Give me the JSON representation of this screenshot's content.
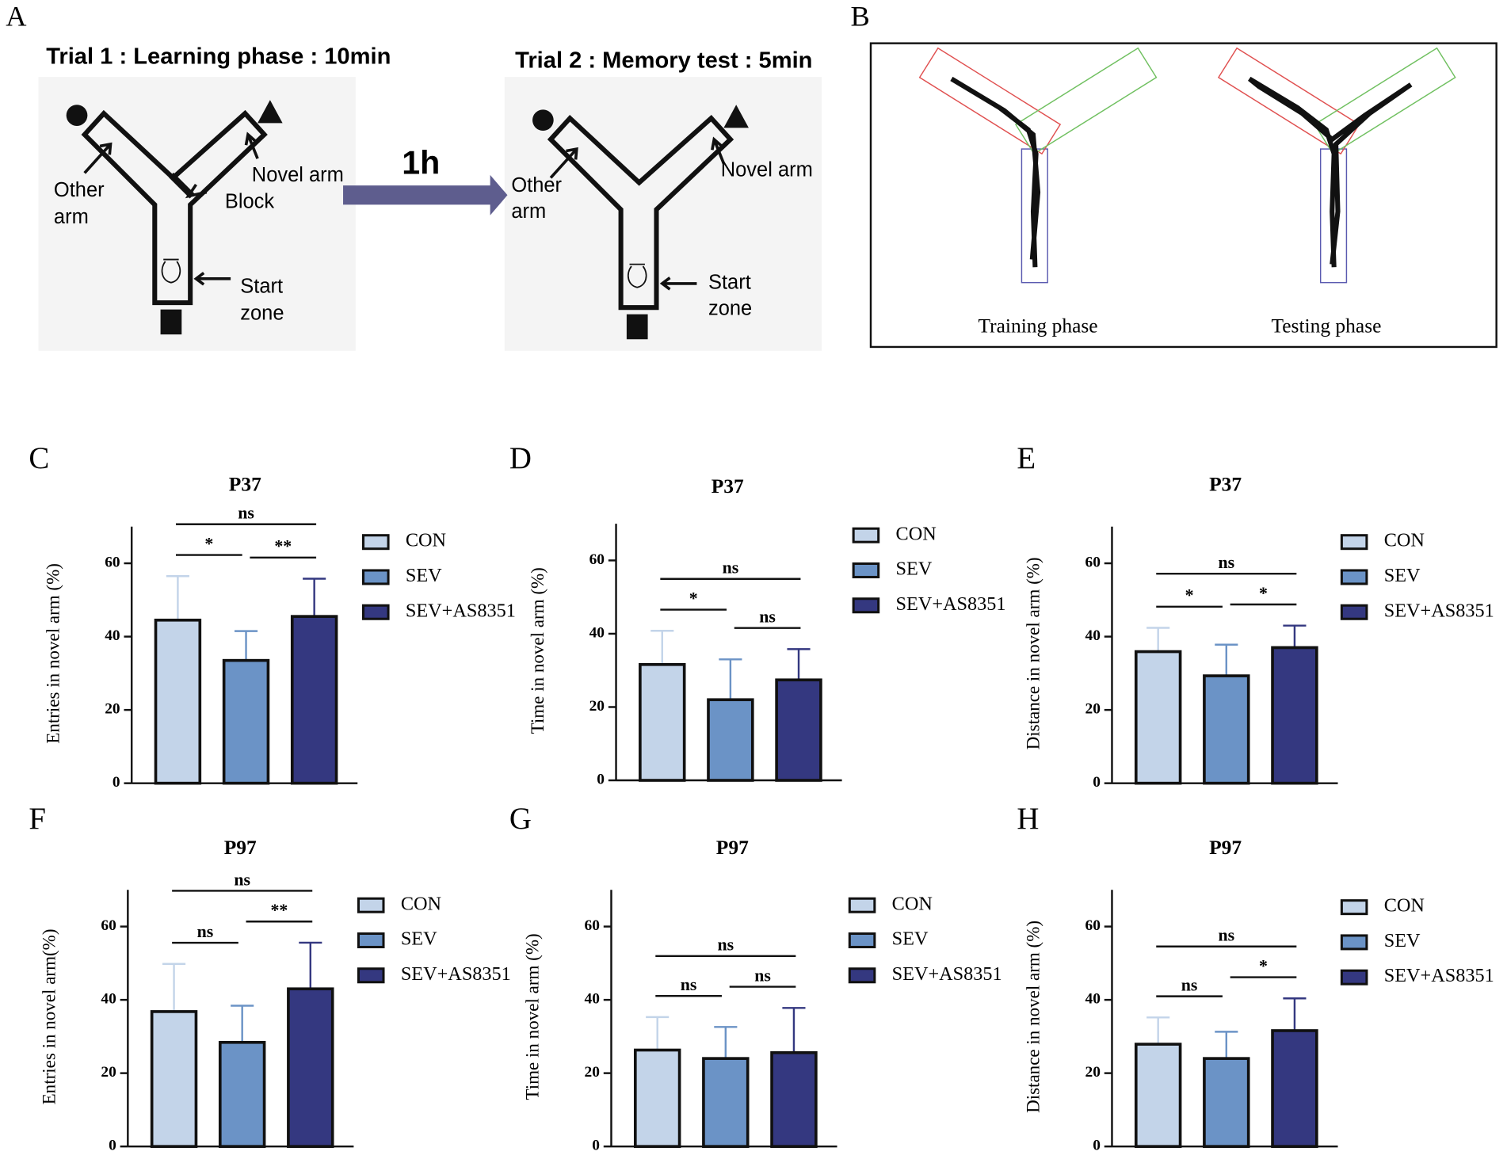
{
  "panel_a": {
    "label": "A",
    "trial1": "Trial 1 : Learning phase : 10min",
    "trial2": "Trial 2 : Memory test : 5min",
    "delay": "1h",
    "maze1": {
      "other": [
        "Other",
        "arm"
      ],
      "novel": "Novel arm",
      "block": "Block",
      "start": [
        "Start",
        "zone"
      ]
    },
    "maze2": {
      "other": [
        "Other",
        "arm"
      ],
      "novel": "Novel arm",
      "start": [
        "Start",
        "zone"
      ]
    }
  },
  "panel_b": {
    "label": "B",
    "captions": [
      "Training phase",
      "Testing phase"
    ]
  },
  "chart_data": [
    {
      "type": "bar",
      "panel": "C",
      "title": "P37",
      "ylabel": "Entries in novel arm (%)",
      "categories": [
        "CON",
        "SEV",
        "SEV+AS8351"
      ],
      "values": [
        44.5,
        33.5,
        45.5
      ],
      "errors": [
        12,
        8,
        10.3
      ],
      "colors": [
        "#c3d4e9",
        "#6b93c6",
        "#343880"
      ],
      "ylim": [
        0,
        70
      ],
      "yticks": [
        0,
        20,
        40,
        60
      ],
      "comparisons": [
        {
          "groups": [
            "CON",
            "SEV+AS8351"
          ],
          "label": "ns"
        },
        {
          "groups": [
            "CON",
            "SEV"
          ],
          "label": "*"
        },
        {
          "groups": [
            "SEV",
            "SEV+AS8351"
          ],
          "label": "**"
        }
      ]
    },
    {
      "type": "bar",
      "panel": "D",
      "title": "P37",
      "ylabel": "Time in novel arm (%)",
      "categories": [
        "CON",
        "SEV",
        "SEV+AS8351"
      ],
      "values": [
        31.6,
        22,
        27.4
      ],
      "errors": [
        9.2,
        11,
        8.4
      ],
      "colors": [
        "#c3d4e9",
        "#6b93c6",
        "#343880"
      ],
      "ylim": [
        0,
        70
      ],
      "yticks": [
        0,
        20,
        40,
        60
      ],
      "comparisons": [
        {
          "groups": [
            "CON",
            "SEV+AS8351"
          ],
          "label": "ns"
        },
        {
          "groups": [
            "CON",
            "SEV"
          ],
          "label": "*"
        },
        {
          "groups": [
            "SEV",
            "SEV+AS8351"
          ],
          "label": "ns"
        }
      ]
    },
    {
      "type": "bar",
      "panel": "E",
      "title": "P37",
      "ylabel": "Distance in novel arm (%)",
      "categories": [
        "CON",
        "SEV",
        "SEV+AS8351"
      ],
      "values": [
        35.9,
        29.3,
        37
      ],
      "errors": [
        6.5,
        8.5,
        6
      ],
      "colors": [
        "#c3d4e9",
        "#6b93c6",
        "#343880"
      ],
      "ylim": [
        0,
        70
      ],
      "yticks": [
        0,
        20,
        40,
        60
      ],
      "comparisons": [
        {
          "groups": [
            "CON",
            "SEV+AS8351"
          ],
          "label": "ns"
        },
        {
          "groups": [
            "CON",
            "SEV"
          ],
          "label": "*"
        },
        {
          "groups": [
            "SEV",
            "SEV+AS8351"
          ],
          "label": "*"
        }
      ]
    },
    {
      "type": "bar",
      "panel": "F",
      "title": "P97",
      "ylabel": "Entries in novel arm(%)",
      "categories": [
        "CON",
        "SEV",
        "SEV+AS8351"
      ],
      "values": [
        36.8,
        28.4,
        43
      ],
      "errors": [
        13,
        10,
        12.6
      ],
      "colors": [
        "#c3d4e9",
        "#6b93c6",
        "#343880"
      ],
      "ylim": [
        0,
        70
      ],
      "yticks": [
        0,
        20,
        40,
        60
      ],
      "comparisons": [
        {
          "groups": [
            "CON",
            "SEV+AS8351"
          ],
          "label": "ns"
        },
        {
          "groups": [
            "CON",
            "SEV"
          ],
          "label": "ns"
        },
        {
          "groups": [
            "SEV",
            "SEV+AS8351"
          ],
          "label": "**"
        }
      ]
    },
    {
      "type": "bar",
      "panel": "G",
      "title": "P97",
      "ylabel": "Time in novel arm (%)",
      "categories": [
        "CON",
        "SEV",
        "SEV+AS8351"
      ],
      "values": [
        26.3,
        24,
        25.6
      ],
      "errors": [
        9,
        8.6,
        12.2
      ],
      "colors": [
        "#c3d4e9",
        "#6b93c6",
        "#343880"
      ],
      "ylim": [
        0,
        70
      ],
      "yticks": [
        0,
        20,
        40,
        60
      ],
      "comparisons": [
        {
          "groups": [
            "CON",
            "SEV+AS8351"
          ],
          "label": "ns"
        },
        {
          "groups": [
            "CON",
            "SEV"
          ],
          "label": "ns"
        },
        {
          "groups": [
            "SEV",
            "SEV+AS8351"
          ],
          "label": "ns"
        }
      ]
    },
    {
      "type": "bar",
      "panel": "H",
      "title": "P97",
      "ylabel": "Distance in novel arm (%)",
      "categories": [
        "CON",
        "SEV",
        "SEV+AS8351"
      ],
      "values": [
        27.9,
        24,
        31.6
      ],
      "errors": [
        7.3,
        7.3,
        8.8
      ],
      "colors": [
        "#c3d4e9",
        "#6b93c6",
        "#343880"
      ],
      "ylim": [
        0,
        70
      ],
      "yticks": [
        0,
        20,
        40,
        60
      ],
      "comparisons": [
        {
          "groups": [
            "CON",
            "SEV+AS8351"
          ],
          "label": "ns"
        },
        {
          "groups": [
            "CON",
            "SEV"
          ],
          "label": "ns"
        },
        {
          "groups": [
            "SEV",
            "SEV+AS8351"
          ],
          "label": "*"
        }
      ]
    }
  ]
}
